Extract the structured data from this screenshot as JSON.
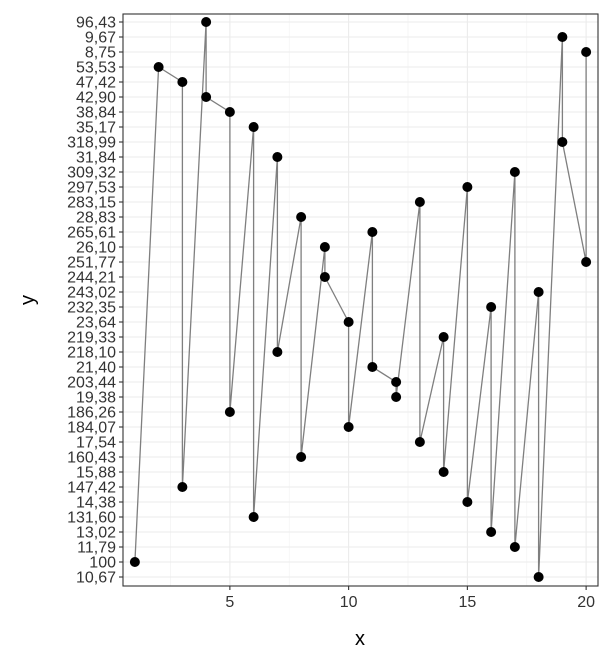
{
  "chart_data": {
    "type": "line",
    "xlabel": "x",
    "ylabel": "y",
    "xlim": [
      0.5,
      20.5
    ],
    "x_ticks": [
      "5",
      "10",
      "15",
      "20"
    ],
    "x_tick_values": [
      5,
      10,
      15,
      20
    ],
    "y_categories_bottom_to_top": [
      "10,67",
      "100",
      "11,79",
      "13,02",
      "131,60",
      "14,38",
      "147,42",
      "15,88",
      "160,43",
      "17,54",
      "184,07",
      "186,26",
      "19,38",
      "203,44",
      "21,40",
      "218,10",
      "219,33",
      "23,64",
      "232,35",
      "243,02",
      "244,21",
      "251,77",
      "26,10",
      "265,61",
      "28,83",
      "283,15",
      "297,53",
      "309,32",
      "31,84",
      "318,99",
      "35,17",
      "38,84",
      "42,90",
      "47,42",
      "53,53",
      "8,75",
      "9,67",
      "96,43"
    ],
    "points": [
      {
        "x": 1,
        "y": "100"
      },
      {
        "x": 2,
        "y": "53,53"
      },
      {
        "x": 3,
        "y": "47,42"
      },
      {
        "x": 3,
        "y": "147,42"
      },
      {
        "x": 4,
        "y": "96,43"
      },
      {
        "x": 4,
        "y": "42,90"
      },
      {
        "x": 5,
        "y": "38,84"
      },
      {
        "x": 5,
        "y": "186,26"
      },
      {
        "x": 6,
        "y": "35,17"
      },
      {
        "x": 6,
        "y": "131,60"
      },
      {
        "x": 7,
        "y": "31,84"
      },
      {
        "x": 7,
        "y": "218,10"
      },
      {
        "x": 8,
        "y": "28,83"
      },
      {
        "x": 8,
        "y": "160,43"
      },
      {
        "x": 9,
        "y": "26,10"
      },
      {
        "x": 9,
        "y": "244,21"
      },
      {
        "x": 10,
        "y": "23,64"
      },
      {
        "x": 10,
        "y": "184,07"
      },
      {
        "x": 11,
        "y": "265,61"
      },
      {
        "x": 11,
        "y": "21,40"
      },
      {
        "x": 12,
        "y": "203,44"
      },
      {
        "x": 12,
        "y": "19,38"
      },
      {
        "x": 13,
        "y": "283,15"
      },
      {
        "x": 13,
        "y": "17,54"
      },
      {
        "x": 14,
        "y": "219,33"
      },
      {
        "x": 14,
        "y": "15,88"
      },
      {
        "x": 15,
        "y": "297,53"
      },
      {
        "x": 15,
        "y": "14,38"
      },
      {
        "x": 16,
        "y": "232,35"
      },
      {
        "x": 16,
        "y": "13,02"
      },
      {
        "x": 17,
        "y": "309,32"
      },
      {
        "x": 17,
        "y": "11,79"
      },
      {
        "x": 18,
        "y": "243,02"
      },
      {
        "x": 18,
        "y": "10,67"
      },
      {
        "x": 19,
        "y": "9,67"
      },
      {
        "x": 19,
        "y": "318,99"
      },
      {
        "x": 20,
        "y": "251,77"
      },
      {
        "x": 20,
        "y": "8,75"
      }
    ],
    "grid": true,
    "colors": {
      "line": "#7f7f7f",
      "point": "#000000",
      "grid_major": "#ebebeb",
      "grid_minor": "#f4f4f4",
      "panel_border": "#333333",
      "tick_text": "#333333"
    }
  }
}
